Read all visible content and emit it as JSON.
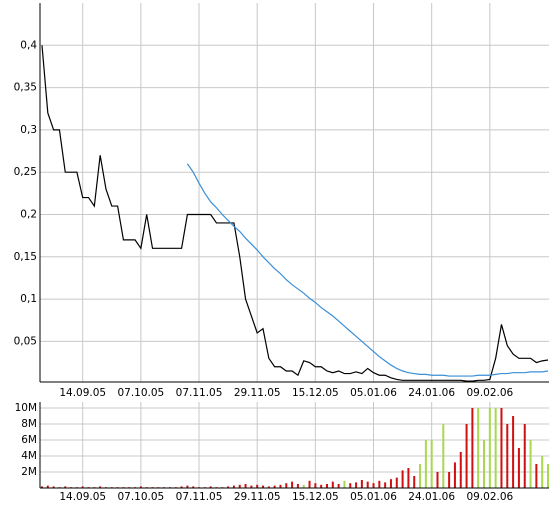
{
  "chart_data": [
    {
      "type": "line",
      "categories": [
        null,
        null,
        null,
        null,
        null,
        null,
        null,
        "14.09.05",
        null,
        null,
        null,
        null,
        null,
        null,
        null,
        null,
        null,
        "07.10.05",
        null,
        null,
        null,
        null,
        null,
        null,
        null,
        null,
        null,
        "07.11.05",
        null,
        null,
        null,
        null,
        null,
        null,
        null,
        null,
        null,
        "29.11.05",
        null,
        null,
        null,
        null,
        null,
        null,
        null,
        null,
        null,
        "15.12.05",
        null,
        null,
        null,
        null,
        null,
        null,
        null,
        null,
        null,
        "05.01.06",
        null,
        null,
        null,
        null,
        null,
        null,
        null,
        null,
        null,
        "24.01.06",
        null,
        null,
        null,
        null,
        null,
        null,
        null,
        null,
        null,
        "09.02.06",
        null,
        null,
        null,
        null,
        null,
        null,
        null,
        null,
        null,
        null
      ],
      "series": [
        {
          "color": "#000000",
          "values": [
            0.4,
            0.32,
            0.3,
            0.3,
            0.25,
            0.25,
            0.25,
            0.22,
            0.22,
            0.21,
            0.27,
            0.23,
            0.21,
            0.21,
            0.17,
            0.17,
            0.17,
            0.16,
            0.2,
            0.16,
            0.16,
            0.16,
            0.16,
            0.16,
            0.16,
            0.2,
            0.2,
            0.2,
            0.2,
            0.2,
            0.19,
            0.19,
            0.19,
            0.19,
            0.15,
            0.1,
            0.08,
            0.06,
            0.065,
            0.03,
            0.02,
            0.02,
            0.015,
            0.015,
            0.01,
            0.027,
            0.025,
            0.02,
            0.02,
            0.015,
            0.013,
            0.015,
            0.012,
            0.012,
            0.014,
            0.012,
            0.018,
            0.013,
            0.01,
            0.01,
            0.007,
            0.005,
            0.004,
            0.004,
            0.004,
            0.004,
            0.004,
            0.004,
            0.004,
            0.004,
            0.004,
            0.004,
            0.004,
            0.003,
            0.003,
            0.004,
            0.004,
            0.005,
            0.03,
            0.07,
            0.045,
            0.035,
            0.03,
            0.03,
            0.03,
            0.025,
            0.027,
            0.028
          ]
        },
        {
          "color": "#3a8fd8",
          "values": [
            null,
            null,
            null,
            null,
            null,
            null,
            null,
            null,
            null,
            null,
            null,
            null,
            null,
            null,
            null,
            null,
            null,
            null,
            null,
            null,
            null,
            null,
            null,
            null,
            null,
            0.26,
            0.25,
            0.237,
            0.225,
            0.215,
            0.208,
            0.2,
            0.193,
            0.186,
            0.18,
            0.172,
            0.165,
            0.158,
            0.15,
            0.143,
            0.136,
            0.13,
            0.123,
            0.117,
            0.112,
            0.107,
            0.101,
            0.096,
            0.09,
            0.085,
            0.08,
            0.074,
            0.068,
            0.062,
            0.056,
            0.05,
            0.044,
            0.038,
            0.032,
            0.027,
            0.022,
            0.018,
            0.015,
            0.013,
            0.012,
            0.011,
            0.011,
            0.01,
            0.01,
            0.01,
            0.009,
            0.009,
            0.009,
            0.009,
            0.009,
            0.01,
            0.01,
            0.01,
            0.011,
            0.012,
            0.012,
            0.013,
            0.013,
            0.013,
            0.014,
            0.014,
            0.014,
            0.015
          ]
        }
      ],
      "ylim": [
        0.002,
        0.45
      ],
      "yticks": [
        {
          "value": 0.05,
          "label": "0,05"
        },
        {
          "value": 0.1,
          "label": "0,1"
        },
        {
          "value": 0.15,
          "label": "0,15"
        },
        {
          "value": 0.2,
          "label": "0,2"
        },
        {
          "value": 0.25,
          "label": "0,25"
        },
        {
          "value": 0.3,
          "label": "0,3"
        },
        {
          "value": 0.35,
          "label": "0,35"
        },
        {
          "value": 0.4,
          "label": "0,4"
        }
      ],
      "grid": true
    },
    {
      "type": "bar",
      "categories": [
        null,
        null,
        null,
        null,
        null,
        null,
        null,
        "14.09.05",
        null,
        null,
        null,
        null,
        null,
        null,
        null,
        null,
        null,
        "07.10.05",
        null,
        null,
        null,
        null,
        null,
        null,
        null,
        null,
        null,
        "07.11.05",
        null,
        null,
        null,
        null,
        null,
        null,
        null,
        null,
        null,
        "29.11.05",
        null,
        null,
        null,
        null,
        null,
        null,
        null,
        null,
        null,
        "15.12.05",
        null,
        null,
        null,
        null,
        null,
        null,
        null,
        null,
        null,
        "05.01.06",
        null,
        null,
        null,
        null,
        null,
        null,
        null,
        null,
        null,
        "24.01.06",
        null,
        null,
        null,
        null,
        null,
        null,
        null,
        null,
        null,
        "09.02.06",
        null,
        null,
        null,
        null,
        null,
        null,
        null,
        null,
        null,
        null
      ],
      "values": [
        0.2,
        0.3,
        0.2,
        0.1,
        0.2,
        0.1,
        0.1,
        0.2,
        0.1,
        0.1,
        0.2,
        0.1,
        0.1,
        0.1,
        0.1,
        0.1,
        0.1,
        0.2,
        0.1,
        0.1,
        0.1,
        0.1,
        0.1,
        0.1,
        0.2,
        0.3,
        0.2,
        0.1,
        0.1,
        0.2,
        0.1,
        0.1,
        0.2,
        0.3,
        0.4,
        0.5,
        0.3,
        0.4,
        0.3,
        0.2,
        0.3,
        0.4,
        0.6,
        0.8,
        0.5,
        0.4,
        0.9,
        0.6,
        0.4,
        0.5,
        0.8,
        0.5,
        0.9,
        0.6,
        0.7,
        1.0,
        0.8,
        0.6,
        0.9,
        0.7,
        1.1,
        1.3,
        2.2,
        2.5,
        1.5,
        3.0,
        6.0,
        6.0,
        2.0,
        8.0,
        2.0,
        3.2,
        4.5,
        8.0,
        10.0,
        10.0,
        6.0,
        10.0,
        10.0,
        10.0,
        8.0,
        9.0,
        5.0,
        8.0,
        6.0,
        3.0,
        4.0,
        3.0
      ],
      "colors": [
        "#d01010",
        "#d01010",
        "#d01010",
        "#d01010",
        "#d01010",
        "#d01010",
        "#d01010",
        "#d01010",
        "#d01010",
        "#d01010",
        "#d01010",
        "#d01010",
        "#d01010",
        "#d01010",
        "#d01010",
        "#d01010",
        "#d01010",
        "#d01010",
        "#d01010",
        "#d01010",
        "#d01010",
        "#d01010",
        "#d01010",
        "#d01010",
        "#d01010",
        "#d01010",
        "#d01010",
        "#d01010",
        "#d01010",
        "#d01010",
        "#d01010",
        "#d01010",
        "#d01010",
        "#d01010",
        "#d01010",
        "#d01010",
        "#d01010",
        "#d01010",
        "#d01010",
        "#d01010",
        "#d01010",
        "#d01010",
        "#d01010",
        "#d01010",
        "#d01010",
        "#a8d850",
        "#d01010",
        "#d01010",
        "#d01010",
        "#d01010",
        "#d01010",
        "#d01010",
        "#a8d850",
        "#d01010",
        "#d01010",
        "#d01010",
        "#d01010",
        "#d01010",
        "#d01010",
        "#d01010",
        "#d01010",
        "#d01010",
        "#d01010",
        "#d01010",
        "#d01010",
        "#a8d850",
        "#a8d850",
        "#a8d850",
        "#d01010",
        "#a8d850",
        "#d01010",
        "#d01010",
        "#d01010",
        "#d01010",
        "#d01010",
        "#a8d850",
        "#a8d850",
        "#a8d850",
        "#a8d850",
        "#d01010",
        "#d01010",
        "#d01010",
        "#d01010",
        "#d01010",
        "#a8d850",
        "#d01010",
        "#a8d850",
        "#a8d850"
      ],
      "ylim": [
        0,
        10.75
      ],
      "yticks": [
        {
          "value": 2,
          "label": "2M"
        },
        {
          "value": 4,
          "label": "4M"
        },
        {
          "value": 6,
          "label": "6M"
        },
        {
          "value": 8,
          "label": "8M"
        },
        {
          "value": 10,
          "label": "10M"
        }
      ],
      "grid": true
    }
  ]
}
